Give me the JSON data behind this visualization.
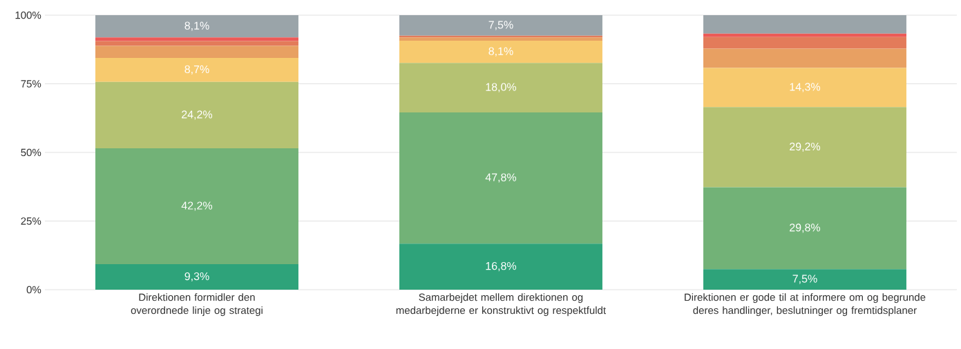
{
  "chart_data": {
    "type": "bar",
    "stacked": true,
    "categories": [
      "Direktionen formidler den overordnede linje og strategi",
      "Samarbejdet mellem direktionen og medarbejderne er konstruktivt og respektfuldt",
      "Direktionen er gode til at informere om og begrunde deres handlinger, beslutninger og fremtidsplaner"
    ],
    "series": [
      {
        "color": "#2ea37a",
        "values": [
          9.3,
          16.8,
          7.5
        ],
        "value_labels": [
          "9,3%",
          "16,8%",
          "7,5%"
        ]
      },
      {
        "color": "#72b277",
        "values": [
          42.2,
          47.8,
          29.8
        ],
        "value_labels": [
          "42,2%",
          "47,8%",
          "29,8%"
        ]
      },
      {
        "color": "#b5c272",
        "values": [
          24.2,
          18.0,
          29.2
        ],
        "value_labels": [
          "24,2%",
          "18,0%",
          "29,2%"
        ]
      },
      {
        "color": "#f7ca6e",
        "values": [
          8.7,
          8.1,
          14.3
        ],
        "value_labels": [
          "8,7%",
          "8,1%",
          "14,3%"
        ]
      },
      {
        "color": "#e8a062",
        "values": [
          4.4,
          1.2,
          7.0
        ]
      },
      {
        "color": "#e37b5a",
        "values": [
          1.8,
          0.6,
          4.2
        ]
      },
      {
        "color": "#ec5a57",
        "values": [
          1.3,
          0,
          1.3
        ]
      },
      {
        "color": "#9aa4a9",
        "values": [
          8.1,
          7.5,
          6.7
        ],
        "value_labels": [
          "8,1%",
          "7,5%",
          null
        ]
      }
    ],
    "ylim": [
      0,
      100
    ],
    "yticks": [
      {
        "value": 0,
        "label": "0%"
      },
      {
        "value": 25,
        "label": "25%"
      },
      {
        "value": 50,
        "label": "50%"
      },
      {
        "value": 75,
        "label": "75%"
      },
      {
        "value": 100,
        "label": "100%"
      }
    ],
    "grid": "y"
  }
}
